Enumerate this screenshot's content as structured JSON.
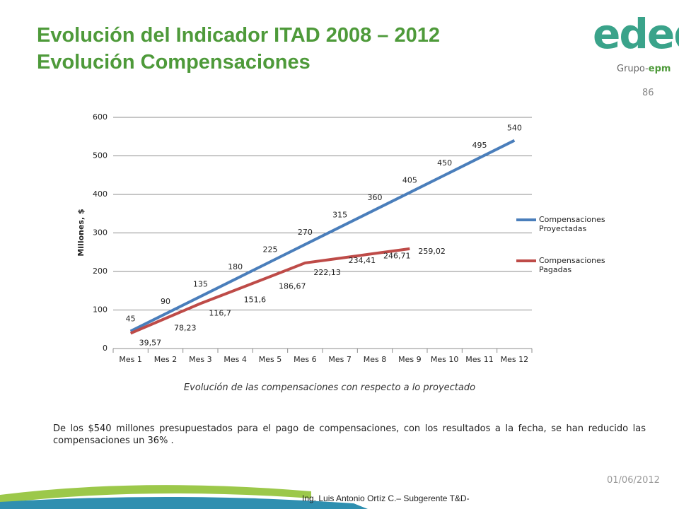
{
  "header": {
    "title_line1": "Evolución del Indicador ITAD 2008 – 2012",
    "title_line2": "Evolución Compensaciones",
    "page_number": "86"
  },
  "logo": {
    "brand": "edeq",
    "group": "Grupo-",
    "group_brand": "epm"
  },
  "chart_data": {
    "type": "line",
    "y_label": "Millones, $",
    "categories": [
      "Mes 1",
      "Mes 2",
      "Mes 3",
      "Mes 4",
      "Mes 5",
      "Mes 6",
      "Mes 7",
      "Mes 8",
      "Mes 9",
      "Mes 10",
      "Mes 11",
      "Mes 12"
    ],
    "series": [
      {
        "name": "Compensaciones Proyectadas",
        "color": "#4a7ebb",
        "values": [
          45,
          90,
          135,
          180,
          225,
          270,
          315,
          360,
          405,
          450,
          495,
          540
        ]
      },
      {
        "name": "Compensaciones Pagadas",
        "color": "#be4b48",
        "values": [
          39.57,
          78.23,
          116.7,
          151.6,
          186.67,
          222.13,
          234.41,
          246.71,
          259.02,
          null,
          null,
          null
        ],
        "value_labels": [
          "39,57",
          "78,23",
          "116,7",
          "151,6",
          "186,67",
          "222,13",
          "234,41",
          "246,71",
          "259,02",
          null,
          null,
          null
        ]
      }
    ],
    "ylim": [
      0,
      600
    ],
    "yticks": [
      0,
      100,
      200,
      300,
      400,
      500,
      600
    ],
    "grid": true,
    "legend": "right"
  },
  "caption": "Evolución de las compensaciones con respecto a lo proyectado",
  "paragraph": "De los $540 millones presupuestados para el pago de compensaciones, con los resultados a la fecha, se han reducido las compensaciones un 36% .",
  "footer": {
    "date": "01/06/2012",
    "author": "Ing. Luis Antonio Ortíz C.– Subgerente T&D-"
  }
}
